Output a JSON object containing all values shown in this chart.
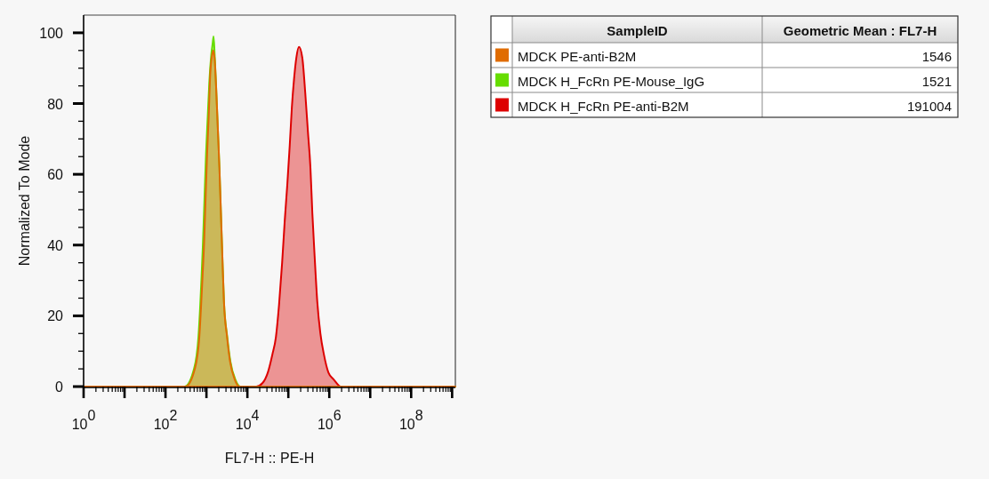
{
  "chart_data": {
    "type": "area",
    "xlabel": "FL7-H :: PE-H",
    "ylabel": "Normalized To Mode",
    "log": "x",
    "legend": "right",
    "legend_title": "SampleID",
    "annotations": [
      "Geometric Mean : FL7-H",
      "1546",
      "1521",
      "191004"
    ],
    "xlim": [
      1,
      1200000000.0
    ],
    "ylim": [
      0,
      105
    ],
    "xticks": [
      {
        "value": 1,
        "label": "10$^{0}$"
      },
      {
        "value": 2,
        "label": null
      },
      {
        "value": 3,
        "label": null
      },
      {
        "value": 4,
        "label": null
      },
      {
        "value": 5,
        "label": null
      },
      {
        "value": 6,
        "label": null
      },
      {
        "value": 7,
        "label": null
      },
      {
        "value": 8,
        "label": null
      },
      {
        "value": 9,
        "label": null
      },
      {
        "value": 10,
        "label": null
      },
      {
        "value": 20,
        "label": null
      },
      {
        "value": 30,
        "label": null
      },
      {
        "value": 40,
        "label": null
      },
      {
        "value": 50,
        "label": null
      },
      {
        "value": 60,
        "label": null
      },
      {
        "value": 70,
        "label": null
      },
      {
        "value": 80,
        "label": null
      },
      {
        "value": 90,
        "label": null
      },
      {
        "value": 100,
        "label": "10$^{2}$"
      },
      {
        "value": 200,
        "label": null
      },
      {
        "value": 300,
        "label": null
      },
      {
        "value": 400,
        "label": null
      },
      {
        "value": 500,
        "label": null
      },
      {
        "value": 600,
        "label": null
      },
      {
        "value": 700,
        "label": null
      },
      {
        "value": 800,
        "label": null
      },
      {
        "value": 900,
        "label": null
      },
      {
        "value": 1000,
        "label": null
      },
      {
        "value": 2000,
        "label": null
      },
      {
        "value": 3000,
        "label": null
      },
      {
        "value": 4000,
        "label": null
      },
      {
        "value": 5000,
        "label": null
      },
      {
        "value": 6000,
        "label": null
      },
      {
        "value": 7000,
        "label": null
      },
      {
        "value": 8000,
        "label": null
      },
      {
        "value": 9000,
        "label": null
      },
      {
        "value": 10000,
        "label": "10$^{4}$"
      },
      {
        "value": 20000,
        "label": null
      },
      {
        "value": 30000,
        "label": null
      },
      {
        "value": 40000,
        "label": null
      },
      {
        "value": 50000,
        "label": null
      },
      {
        "value": 60000,
        "label": null
      },
      {
        "value": 70000,
        "label": null
      },
      {
        "value": 80000,
        "label": null
      },
      {
        "value": 90000,
        "label": null
      },
      {
        "value": 100000,
        "label": null
      },
      {
        "value": 200000,
        "label": null
      },
      {
        "value": 300000,
        "label": null
      },
      {
        "value": 400000,
        "label": null
      },
      {
        "value": 500000,
        "label": null
      },
      {
        "value": 600000,
        "label": null
      },
      {
        "value": 700000,
        "label": null
      },
      {
        "value": 800000,
        "label": null
      },
      {
        "value": 900000,
        "label": null
      },
      {
        "value": 1000000,
        "label": "10$^{6}$"
      },
      {
        "value": 2000000,
        "label": null
      },
      {
        "value": 3000000,
        "label": null
      },
      {
        "value": 4000000,
        "label": null
      },
      {
        "value": 5000000,
        "label": null
      },
      {
        "value": 6000000,
        "label": null
      },
      {
        "value": 7000000,
        "label": null
      },
      {
        "value": 8000000,
        "label": null
      },
      {
        "value": 9000000,
        "label": null
      },
      {
        "value": 10000000,
        "label": null
      },
      {
        "value": 20000000,
        "label": null
      },
      {
        "value": 30000000,
        "label": null
      },
      {
        "value": 40000000,
        "label": null
      },
      {
        "value": 50000000,
        "label": null
      },
      {
        "value": 60000000,
        "label": null
      },
      {
        "value": 70000000,
        "label": null
      },
      {
        "value": 80000000,
        "label": null
      },
      {
        "value": 90000000,
        "label": null
      },
      {
        "value": 100000000,
        "label": "10$^{8}$"
      },
      {
        "value": 200000000,
        "label": null
      },
      {
        "value": 300000000,
        "label": null
      },
      {
        "value": 400000000,
        "label": null
      },
      {
        "value": 500000000,
        "label": null
      },
      {
        "value": 600000000,
        "label": null
      },
      {
        "value": 700000000,
        "label": null
      },
      {
        "value": 800000000,
        "label": null
      },
      {
        "value": 900000000,
        "label": null
      },
      {
        "value": 1000000000,
        "label": null
      }
    ],
    "yticks": [
      0,
      {
        "value": 5,
        "label": null
      },
      {
        "value": 10,
        "label": null
      },
      {
        "value": 15,
        "label": null
      },
      20,
      {
        "value": 25,
        "label": null
      },
      {
        "value": 30,
        "label": null
      },
      {
        "value": 35,
        "label": null
      },
      40,
      {
        "value": 45,
        "label": null
      },
      {
        "value": 50,
        "label": null
      },
      {
        "value": 55,
        "label": null
      },
      60,
      {
        "value": 65,
        "label": null
      },
      {
        "value": 70,
        "label": null
      },
      {
        "value": 75,
        "label": null
      },
      80,
      {
        "value": 85,
        "label": null
      },
      {
        "value": 90,
        "label": null
      },
      {
        "value": 95,
        "label": null
      },
      100
    ],
    "series": [
      {
        "name": "MDCK PE-anti-B2M",
        "color": "#e06c00",
        "x": [
          1,
          310,
          521,
          670,
          741,
          802,
          873,
          951,
          1040,
          1132,
          1233,
          1390,
          1469,
          1600,
          1734,
          1897,
          2075,
          2259,
          2460,
          2679,
          3192,
          3784,
          4909,
          6368,
          1200000000.0
        ],
        "values": [
          0,
          0,
          5,
          14,
          23,
          31,
          40,
          53,
          66,
          76,
          88,
          94,
          95,
          92,
          84,
          73,
          62,
          49,
          36,
          24,
          14,
          7,
          2,
          0,
          0
        ]
      },
      {
        "name": "MDCK H_FcRn PE-Mouse_IgG",
        "color": "#66dd00",
        "x": [
          1,
          293,
          497,
          637,
          705,
          759,
          818,
          895,
          979,
          1072,
          1175,
          1318,
          1419,
          1493,
          1585,
          1734,
          1897,
          2075,
          2259,
          2460,
          2679,
          3228,
          3864,
          5093,
          6699,
          1200000000.0
        ],
        "values": [
          0,
          0,
          5,
          14,
          23,
          31,
          40,
          53,
          66,
          76,
          86,
          94,
          97,
          99,
          94,
          84,
          73,
          62,
          49,
          36,
          24,
          14,
          7,
          2,
          0,
          0
        ]
      },
      {
        "name": "MDCK H_FcRn PE-anti-B2M",
        "color": "#dd0000",
        "x": [
          1,
          16500,
          23400,
          31600,
          40600,
          49700,
          59200,
          70500,
          81800,
          94200,
          108000,
          122000,
          138000,
          157000,
          182000,
          219000,
          259000,
          301000,
          346000,
          386000,
          438000,
          509000,
          607000,
          741000,
          951000,
          1285000,
          1920000,
          1200000000.0
        ],
        "values": [
          0,
          0,
          1,
          4,
          9,
          14,
          23,
          35,
          47,
          57,
          68,
          79,
          87,
          93,
          96,
          93,
          83,
          72,
          62,
          49,
          37,
          24,
          15,
          9,
          4,
          2,
          0,
          0
        ]
      }
    ]
  }
}
